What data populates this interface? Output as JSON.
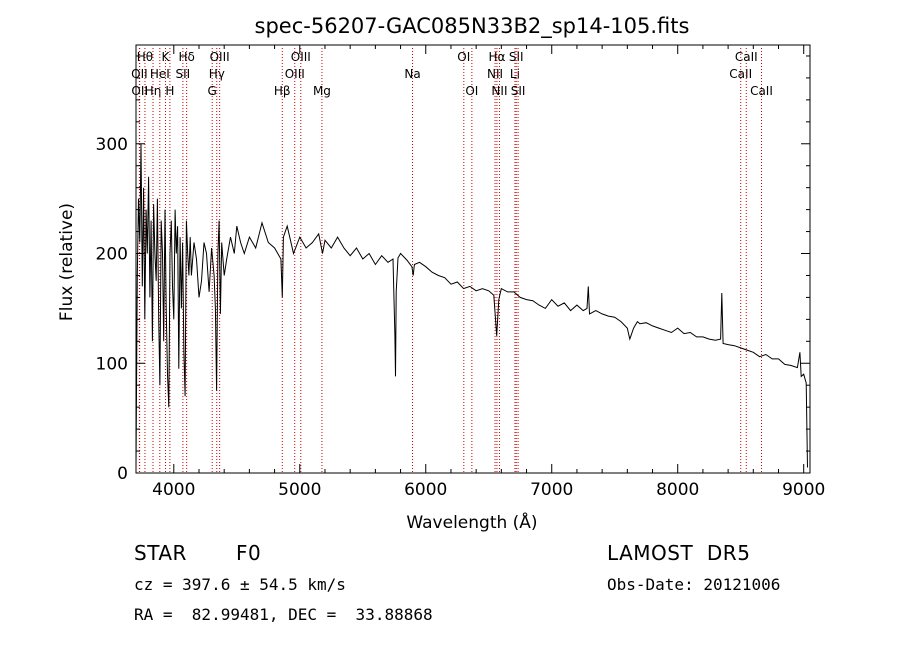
{
  "chart_data": {
    "type": "line",
    "title": "spec-56207-GAC085N33B2_sp14-105.fits",
    "xlabel": "Wavelength (Å)",
    "ylabel": "Flux (relative)",
    "xlim": [
      3700,
      9050
    ],
    "ylim": [
      0,
      390
    ],
    "xticks": [
      4000,
      5000,
      6000,
      7000,
      8000,
      9000
    ],
    "yticks": [
      0,
      100,
      200,
      300
    ],
    "grid": false,
    "line_color": "#000000",
    "marker_color": "#cc0000",
    "series": [
      {
        "values": [
          [
            3700,
            5
          ],
          [
            3710,
            180
          ],
          [
            3720,
            250
          ],
          [
            3730,
            210
          ],
          [
            3740,
            300
          ],
          [
            3750,
            170
          ],
          [
            3760,
            260
          ],
          [
            3770,
            140
          ],
          [
            3780,
            240
          ],
          [
            3790,
            200
          ],
          [
            3800,
            270
          ],
          [
            3810,
            160
          ],
          [
            3820,
            230
          ],
          [
            3830,
            120
          ],
          [
            3840,
            245
          ],
          [
            3850,
            200
          ],
          [
            3860,
            175
          ],
          [
            3870,
            250
          ],
          [
            3880,
            140
          ],
          [
            3890,
            80
          ],
          [
            3900,
            230
          ],
          [
            3910,
            200
          ],
          [
            3920,
            120
          ],
          [
            3930,
            240
          ],
          [
            3940,
            150
          ],
          [
            3950,
            90
          ],
          [
            3960,
            60
          ],
          [
            3970,
            200
          ],
          [
            3980,
            230
          ],
          [
            3990,
            170
          ],
          [
            4000,
            140
          ],
          [
            4010,
            240
          ],
          [
            4020,
            200
          ],
          [
            4030,
            225
          ],
          [
            4040,
            95
          ],
          [
            4050,
            215
          ],
          [
            4060,
            150
          ],
          [
            4070,
            210
          ],
          [
            4080,
            110
          ],
          [
            4090,
            70
          ],
          [
            4100,
            230
          ],
          [
            4110,
            200
          ],
          [
            4120,
            180
          ],
          [
            4130,
            215
          ],
          [
            4140,
            180
          ],
          [
            4160,
            210
          ],
          [
            4180,
            195
          ],
          [
            4200,
            160
          ],
          [
            4220,
            175
          ],
          [
            4240,
            210
          ],
          [
            4260,
            200
          ],
          [
            4280,
            165
          ],
          [
            4300,
            205
          ],
          [
            4320,
            180
          ],
          [
            4330,
            150
          ],
          [
            4340,
            75
          ],
          [
            4350,
            200
          ],
          [
            4360,
            230
          ],
          [
            4370,
            145
          ],
          [
            4380,
            210
          ],
          [
            4400,
            180
          ],
          [
            4420,
            195
          ],
          [
            4450,
            215
          ],
          [
            4480,
            200
          ],
          [
            4500,
            225
          ],
          [
            4530,
            210
          ],
          [
            4560,
            200
          ],
          [
            4600,
            215
          ],
          [
            4650,
            205
          ],
          [
            4700,
            228
          ],
          [
            4750,
            210
          ],
          [
            4800,
            205
          ],
          [
            4850,
            195
          ],
          [
            4861,
            160
          ],
          [
            4870,
            215
          ],
          [
            4900,
            225
          ],
          [
            4950,
            200
          ],
          [
            5000,
            215
          ],
          [
            5050,
            205
          ],
          [
            5100,
            210
          ],
          [
            5150,
            218
          ],
          [
            5180,
            200
          ],
          [
            5200,
            212
          ],
          [
            5250,
            205
          ],
          [
            5300,
            215
          ],
          [
            5350,
            205
          ],
          [
            5400,
            198
          ],
          [
            5450,
            205
          ],
          [
            5500,
            195
          ],
          [
            5550,
            200
          ],
          [
            5600,
            190
          ],
          [
            5650,
            198
          ],
          [
            5700,
            192
          ],
          [
            5740,
            195
          ],
          [
            5755,
            125
          ],
          [
            5760,
            88
          ],
          [
            5765,
            165
          ],
          [
            5780,
            196
          ],
          [
            5800,
            200
          ],
          [
            5850,
            194
          ],
          [
            5890,
            188
          ],
          [
            5900,
            180
          ],
          [
            5910,
            190
          ],
          [
            5950,
            192
          ],
          [
            6000,
            188
          ],
          [
            6050,
            183
          ],
          [
            6100,
            180
          ],
          [
            6150,
            178
          ],
          [
            6200,
            172
          ],
          [
            6250,
            174
          ],
          [
            6300,
            168
          ],
          [
            6350,
            170
          ],
          [
            6400,
            166
          ],
          [
            6450,
            168
          ],
          [
            6500,
            166
          ],
          [
            6540,
            162
          ],
          [
            6563,
            125
          ],
          [
            6580,
            158
          ],
          [
            6600,
            168
          ],
          [
            6650,
            165
          ],
          [
            6700,
            165
          ],
          [
            6750,
            160
          ],
          [
            6800,
            158
          ],
          [
            6850,
            157
          ],
          [
            6900,
            153
          ],
          [
            6950,
            150
          ],
          [
            7000,
            158
          ],
          [
            7050,
            152
          ],
          [
            7100,
            155
          ],
          [
            7150,
            148
          ],
          [
            7200,
            153
          ],
          [
            7250,
            148
          ],
          [
            7280,
            150
          ],
          [
            7290,
            170
          ],
          [
            7300,
            145
          ],
          [
            7350,
            148
          ],
          [
            7400,
            145
          ],
          [
            7450,
            143
          ],
          [
            7500,
            142
          ],
          [
            7550,
            138
          ],
          [
            7600,
            132
          ],
          [
            7620,
            122
          ],
          [
            7650,
            132
          ],
          [
            7680,
            138
          ],
          [
            7700,
            136
          ],
          [
            7750,
            137
          ],
          [
            7800,
            134
          ],
          [
            7850,
            132
          ],
          [
            7900,
            130
          ],
          [
            7950,
            128
          ],
          [
            8000,
            132
          ],
          [
            8050,
            127
          ],
          [
            8100,
            128
          ],
          [
            8150,
            124
          ],
          [
            8200,
            124
          ],
          [
            8250,
            122
          ],
          [
            8300,
            121
          ],
          [
            8340,
            122
          ],
          [
            8350,
            164
          ],
          [
            8360,
            118
          ],
          [
            8400,
            117
          ],
          [
            8450,
            116
          ],
          [
            8500,
            114
          ],
          [
            8550,
            112
          ],
          [
            8600,
            110
          ],
          [
            8650,
            106
          ],
          [
            8700,
            108
          ],
          [
            8750,
            104
          ],
          [
            8800,
            104
          ],
          [
            8850,
            99
          ],
          [
            8900,
            98
          ],
          [
            8950,
            96
          ],
          [
            8970,
            110
          ],
          [
            8980,
            88
          ],
          [
            9000,
            90
          ],
          [
            9020,
            82
          ],
          [
            9030,
            5
          ]
        ]
      }
    ],
    "lines": [
      {
        "label": "OII",
        "x": 3727,
        "row": 1
      },
      {
        "label": "OII",
        "x": 3729,
        "row": 2
      },
      {
        "label": "Hθ",
        "x": 3771,
        "row": 0
      },
      {
        "label": "Hη",
        "x": 3835,
        "row": 2
      },
      {
        "label": "HeI",
        "x": 3889,
        "row": 1
      },
      {
        "label": "K",
        "x": 3934,
        "row": 0
      },
      {
        "label": "H",
        "x": 3969,
        "row": 2
      },
      {
        "label": "SII",
        "x": 4072,
        "row": 1
      },
      {
        "label": "Hδ",
        "x": 4102,
        "row": 0
      },
      {
        "label": "G",
        "x": 4305,
        "row": 2
      },
      {
        "label": "Hγ",
        "x": 4341,
        "row": 1
      },
      {
        "label": "OIII",
        "x": 4364,
        "row": 0
      },
      {
        "label": "Hβ",
        "x": 4861,
        "row": 2
      },
      {
        "label": "OIII",
        "x": 4960,
        "row": 1
      },
      {
        "label": "OIII",
        "x": 5008,
        "row": 0
      },
      {
        "label": "Mg",
        "x": 5176,
        "row": 2
      },
      {
        "label": "Na",
        "x": 5895,
        "row": 1
      },
      {
        "label": "OI",
        "x": 6302,
        "row": 0
      },
      {
        "label": "OI",
        "x": 6366,
        "row": 2
      },
      {
        "label": "NII",
        "x": 6550,
        "row": 1
      },
      {
        "label": "Hα",
        "x": 6565,
        "row": 0
      },
      {
        "label": "NII",
        "x": 6585,
        "row": 2
      },
      {
        "label": "Li",
        "x": 6708,
        "row": 1
      },
      {
        "label": "SII",
        "x": 6718,
        "row": 0
      },
      {
        "label": "SII",
        "x": 6733,
        "row": 2
      },
      {
        "label": "CaII",
        "x": 8500,
        "row": 1
      },
      {
        "label": "CaII",
        "x": 8544,
        "row": 0
      },
      {
        "label": "CaII",
        "x": 8665,
        "row": 2
      }
    ]
  },
  "info": {
    "object_class": "STAR",
    "subclass": "F0",
    "survey": "LAMOST  DR5",
    "cz": "cz = 397.6 ± 54.5 km/s",
    "obs_date": "Obs-Date: 20121006",
    "coords": "RA =  82.99481, DEC =  33.88868"
  }
}
